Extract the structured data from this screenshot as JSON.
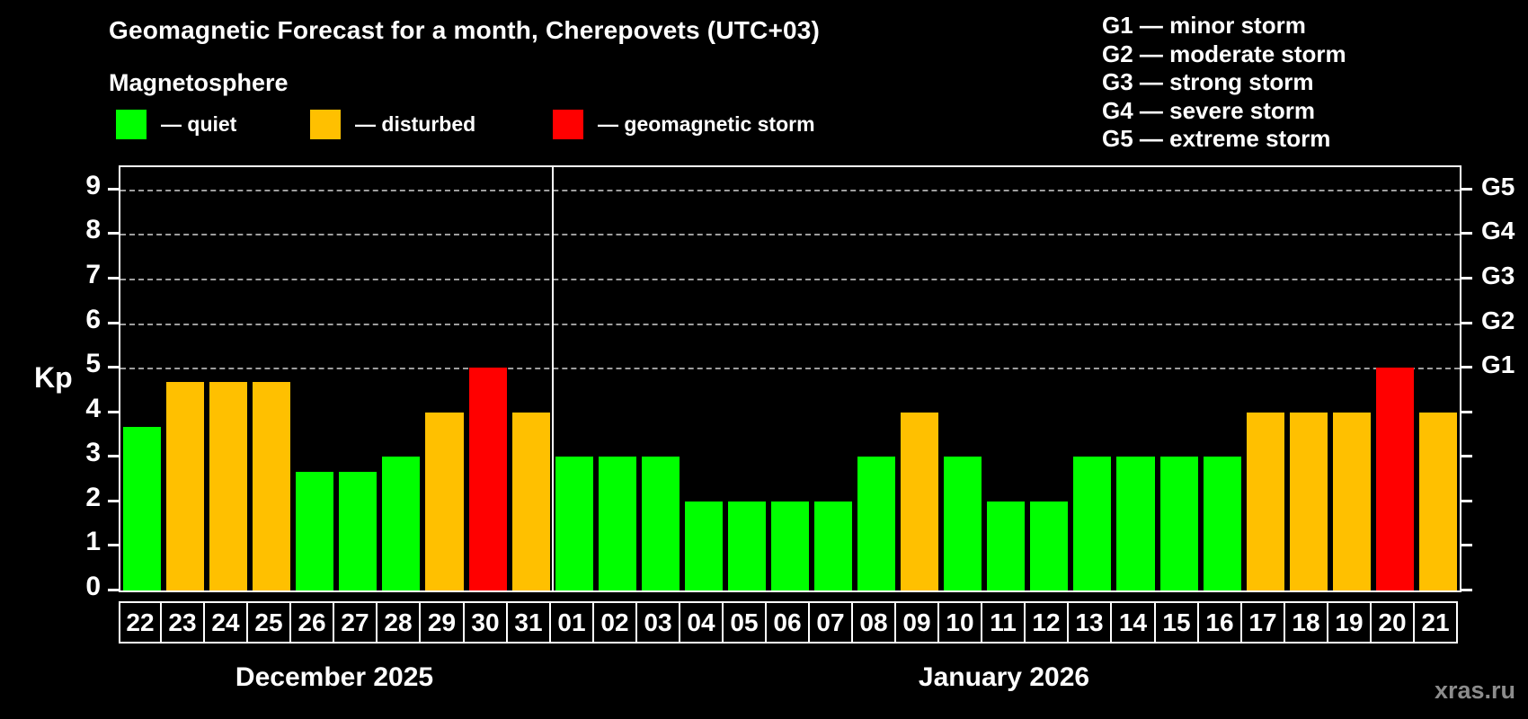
{
  "title": "Geomagnetic Forecast for a month, Cherepovets (UTC+03)",
  "subtitle": "Magnetosphere",
  "status_legend": {
    "items": [
      {
        "status": "quiet",
        "label": "— quiet",
        "color": "#00ff00"
      },
      {
        "status": "disturbed",
        "label": "— disturbed",
        "color": "#ffc000"
      },
      {
        "status": "storm",
        "label": "— geomagnetic storm",
        "color": "#ff0000"
      }
    ]
  },
  "g_legend": {
    "lines": [
      "G1 — minor storm",
      "G2 — moderate storm",
      "G3 — strong storm",
      "G4 — severe storm",
      "G5 — extreme storm"
    ]
  },
  "watermark": "xras.ru",
  "chart_data": {
    "type": "bar",
    "title": "Geomagnetic Forecast for a month, Cherepovets (UTC+03)",
    "ylabel": "Kp",
    "xlabel": "",
    "ylim": [
      0,
      9.5
    ],
    "y_ticks": [
      0,
      1,
      2,
      3,
      4,
      5,
      6,
      7,
      8,
      9
    ],
    "gridlines_at": [
      5,
      6,
      7,
      8,
      9
    ],
    "grid": "dashed horizontal lines at Kp 5..9 only",
    "legend_position": "top-left",
    "right_axis_labels": [
      {
        "code": "G5",
        "kp": 9
      },
      {
        "code": "G4",
        "kp": 8
      },
      {
        "code": "G3",
        "kp": 7
      },
      {
        "code": "G2",
        "kp": 6
      },
      {
        "code": "G1",
        "kp": 5
      }
    ],
    "status_colors": {
      "quiet": "#00ff00",
      "disturbed": "#ffc000",
      "storm": "#ff0000"
    },
    "months": [
      {
        "label": "December 2025",
        "days": [
          "22",
          "23",
          "24",
          "25",
          "26",
          "27",
          "28",
          "29",
          "30",
          "31"
        ],
        "kp": [
          3.67,
          4.67,
          4.67,
          4.67,
          2.67,
          2.67,
          3,
          4,
          5,
          4
        ],
        "status": [
          "quiet",
          "disturbed",
          "disturbed",
          "disturbed",
          "quiet",
          "quiet",
          "quiet",
          "disturbed",
          "storm",
          "disturbed"
        ]
      },
      {
        "label": "January 2026",
        "days": [
          "01",
          "02",
          "03",
          "04",
          "05",
          "06",
          "07",
          "08",
          "09",
          "10",
          "11",
          "12",
          "13",
          "14",
          "15",
          "16",
          "17",
          "18",
          "19",
          "20",
          "21"
        ],
        "kp": [
          3,
          3,
          3,
          2,
          2,
          2,
          2,
          3,
          4,
          3,
          2,
          2,
          3,
          3,
          3,
          3,
          4,
          4,
          4,
          5,
          4
        ],
        "status": [
          "quiet",
          "quiet",
          "quiet",
          "quiet",
          "quiet",
          "quiet",
          "quiet",
          "quiet",
          "disturbed",
          "quiet",
          "quiet",
          "quiet",
          "quiet",
          "quiet",
          "quiet",
          "quiet",
          "disturbed",
          "disturbed",
          "disturbed",
          "storm",
          "disturbed"
        ]
      }
    ]
  }
}
